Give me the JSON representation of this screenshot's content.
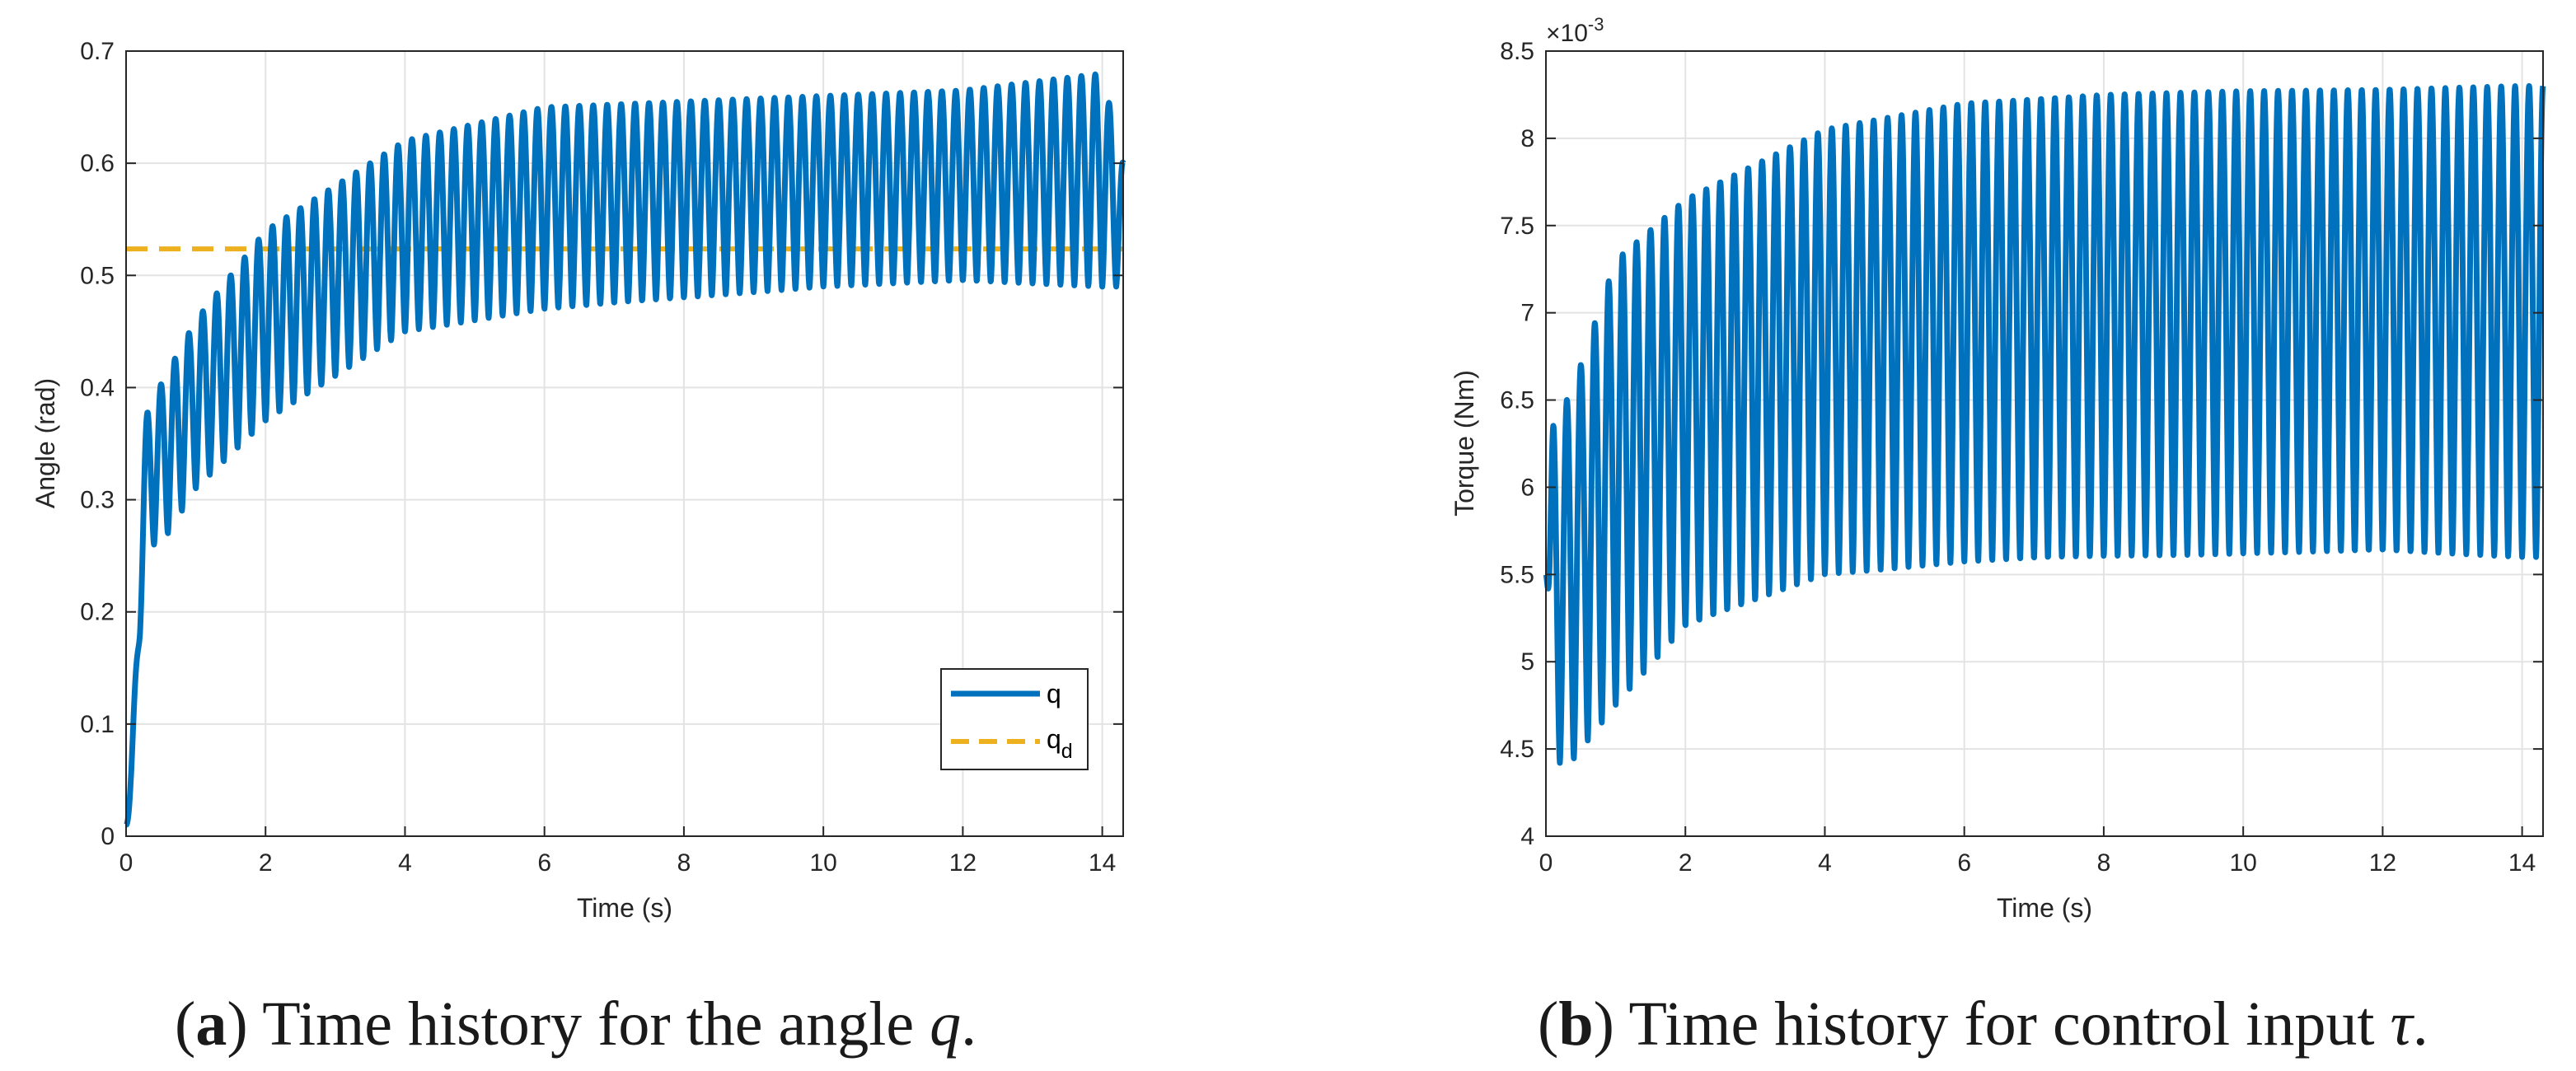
{
  "chart_data": [
    {
      "type": "line",
      "xlabel": "Time (s)",
      "ylabel": "Angle (rad)",
      "xlim": [
        0,
        14.3
      ],
      "ylim": [
        0,
        0.7
      ],
      "xticks": [
        0,
        2,
        4,
        6,
        8,
        10,
        12,
        14
      ],
      "yticks": [
        0,
        0.1,
        0.2,
        0.3,
        0.4,
        0.5,
        0.6,
        0.7
      ],
      "xtick_labels": [
        "0",
        "2",
        "4",
        "6",
        "8",
        "10",
        "12",
        "14"
      ],
      "ytick_labels": [
        "0",
        "0.1",
        "0.2",
        "0.3",
        "0.4",
        "0.5",
        "0.6",
        "0.7"
      ],
      "grid": true,
      "legend_position": "bottom-right",
      "series": [
        {
          "name": "q",
          "color": "#0072BD",
          "style": "solid",
          "description_values": {
            "start": 0.01,
            "oscillation_freq_hz": 5.0,
            "upper_envelope": {
              "t": [
                0.3,
                1,
                2,
                4,
                6,
                8,
                10,
                12,
                14,
                14.3
              ],
              "v": [
                0.38,
                0.46,
                0.54,
                0.62,
                0.65,
                0.655,
                0.66,
                0.665,
                0.68,
                0.6
              ]
            },
            "lower_envelope": {
              "t": [
                0.5,
                1,
                2,
                4,
                6,
                8,
                10,
                12,
                14
              ],
              "v": [
                0.26,
                0.31,
                0.37,
                0.45,
                0.47,
                0.48,
                0.49,
                0.495,
                0.49
              ]
            }
          }
        },
        {
          "name": "q_d",
          "color": "#EDB120",
          "style": "dashed",
          "value": 0.5236
        }
      ],
      "legend": [
        {
          "label": "q",
          "sub": ""
        },
        {
          "label": "q",
          "sub": "d"
        }
      ],
      "caption": {
        "tag": "a",
        "text": ") Time history for the angle ",
        "var": "q",
        "end": "."
      }
    },
    {
      "type": "line",
      "xlabel": "Time (s)",
      "ylabel": "Torque (Nm)",
      "exponent_label": "×10",
      "exponent_power": "-3",
      "xlim": [
        0,
        14.3
      ],
      "ylim": [
        4,
        8.5
      ],
      "xticks": [
        0,
        2,
        4,
        6,
        8,
        10,
        12,
        14
      ],
      "yticks": [
        4,
        4.5,
        5,
        5.5,
        6,
        6.5,
        7,
        7.5,
        8,
        8.5
      ],
      "xtick_labels": [
        "0",
        "2",
        "4",
        "6",
        "8",
        "10",
        "12",
        "14"
      ],
      "ytick_labels": [
        "4",
        "4.5",
        "5",
        "5.5",
        "6",
        "6.5",
        "7",
        "7.5",
        "8",
        "8.5"
      ],
      "grid": true,
      "series": [
        {
          "name": "tau",
          "color": "#0072BD",
          "style": "solid",
          "description_values": {
            "start": 5.5,
            "oscillation_freq_hz": 5.0,
            "upper_envelope": {
              "t": [
                0.2,
                0.5,
                1,
                2,
                4,
                6,
                8,
                10,
                12,
                14
              ],
              "v": [
                6.4,
                6.7,
                7.3,
                7.65,
                8.05,
                8.2,
                8.25,
                8.27,
                8.28,
                8.3
              ]
            },
            "lower_envelope": {
              "t": [
                0.35,
                1,
                2,
                4,
                6,
                8,
                10,
                12,
                14
              ],
              "v": [
                4.42,
                4.75,
                5.2,
                5.5,
                5.57,
                5.6,
                5.62,
                5.63,
                5.6
              ]
            }
          }
        }
      ],
      "caption": {
        "tag": "b",
        "text": ") Time history for control input ",
        "var": "τ",
        "end": "."
      }
    }
  ]
}
